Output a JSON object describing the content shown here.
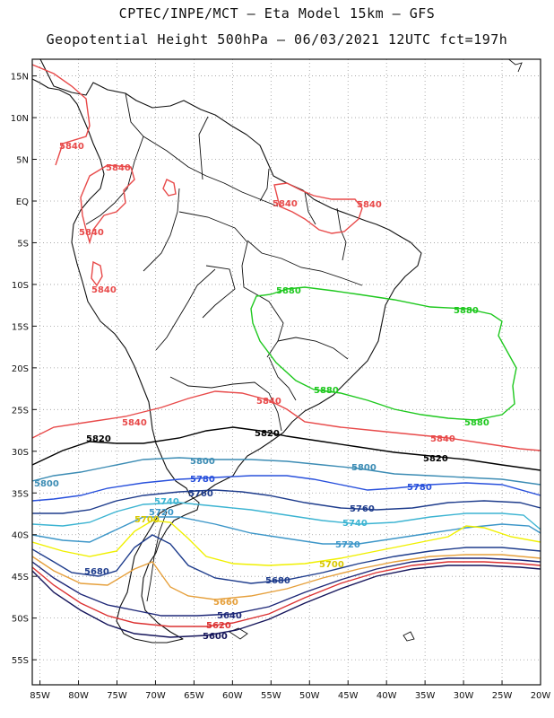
{
  "header": {
    "line1": "CPTEC/INPE/MCT –  Eta Model 15km – GFS",
    "line2": "Geopotential Height 500hPa – 06/03/2021 12UTC fct=197h"
  },
  "map": {
    "lon_range": [
      -86,
      -20
    ],
    "lat_range": [
      -58,
      17
    ],
    "lon_ticks": [
      "85W",
      "80W",
      "75W",
      "70W",
      "65W",
      "60W",
      "55W",
      "50W",
      "45W",
      "40W",
      "35W",
      "30W",
      "25W",
      "20W"
    ],
    "lat_ticks": [
      "15N",
      "10N",
      "5N",
      "EQ",
      "5S",
      "10S",
      "15S",
      "20S",
      "25S",
      "30S",
      "35S",
      "40S",
      "45S",
      "50S",
      "55S"
    ],
    "gridline_style": "dotted"
  },
  "contours": [
    {
      "value": "5880",
      "color": "#1ec81e"
    },
    {
      "value": "5840",
      "color": "#e84a4a"
    },
    {
      "value": "5820",
      "color": "#000000"
    },
    {
      "value": "5800",
      "color": "#3c8cb4"
    },
    {
      "value": "5780",
      "color": "#2850dc"
    },
    {
      "value": "5760",
      "color": "#1e3c8c"
    },
    {
      "value": "5740",
      "color": "#3cb4d2"
    },
    {
      "value": "5720",
      "color": "#3c96c8"
    },
    {
      "value": "5700",
      "color": "#f0f000"
    },
    {
      "value": "5680",
      "color": "#1e3c8c"
    },
    {
      "value": "5660",
      "color": "#e6a03c"
    },
    {
      "value": "5640",
      "color": "#1e2878"
    },
    {
      "value": "5620",
      "color": "#dc3232"
    },
    {
      "value": "5600",
      "color": "#14145a"
    }
  ]
}
